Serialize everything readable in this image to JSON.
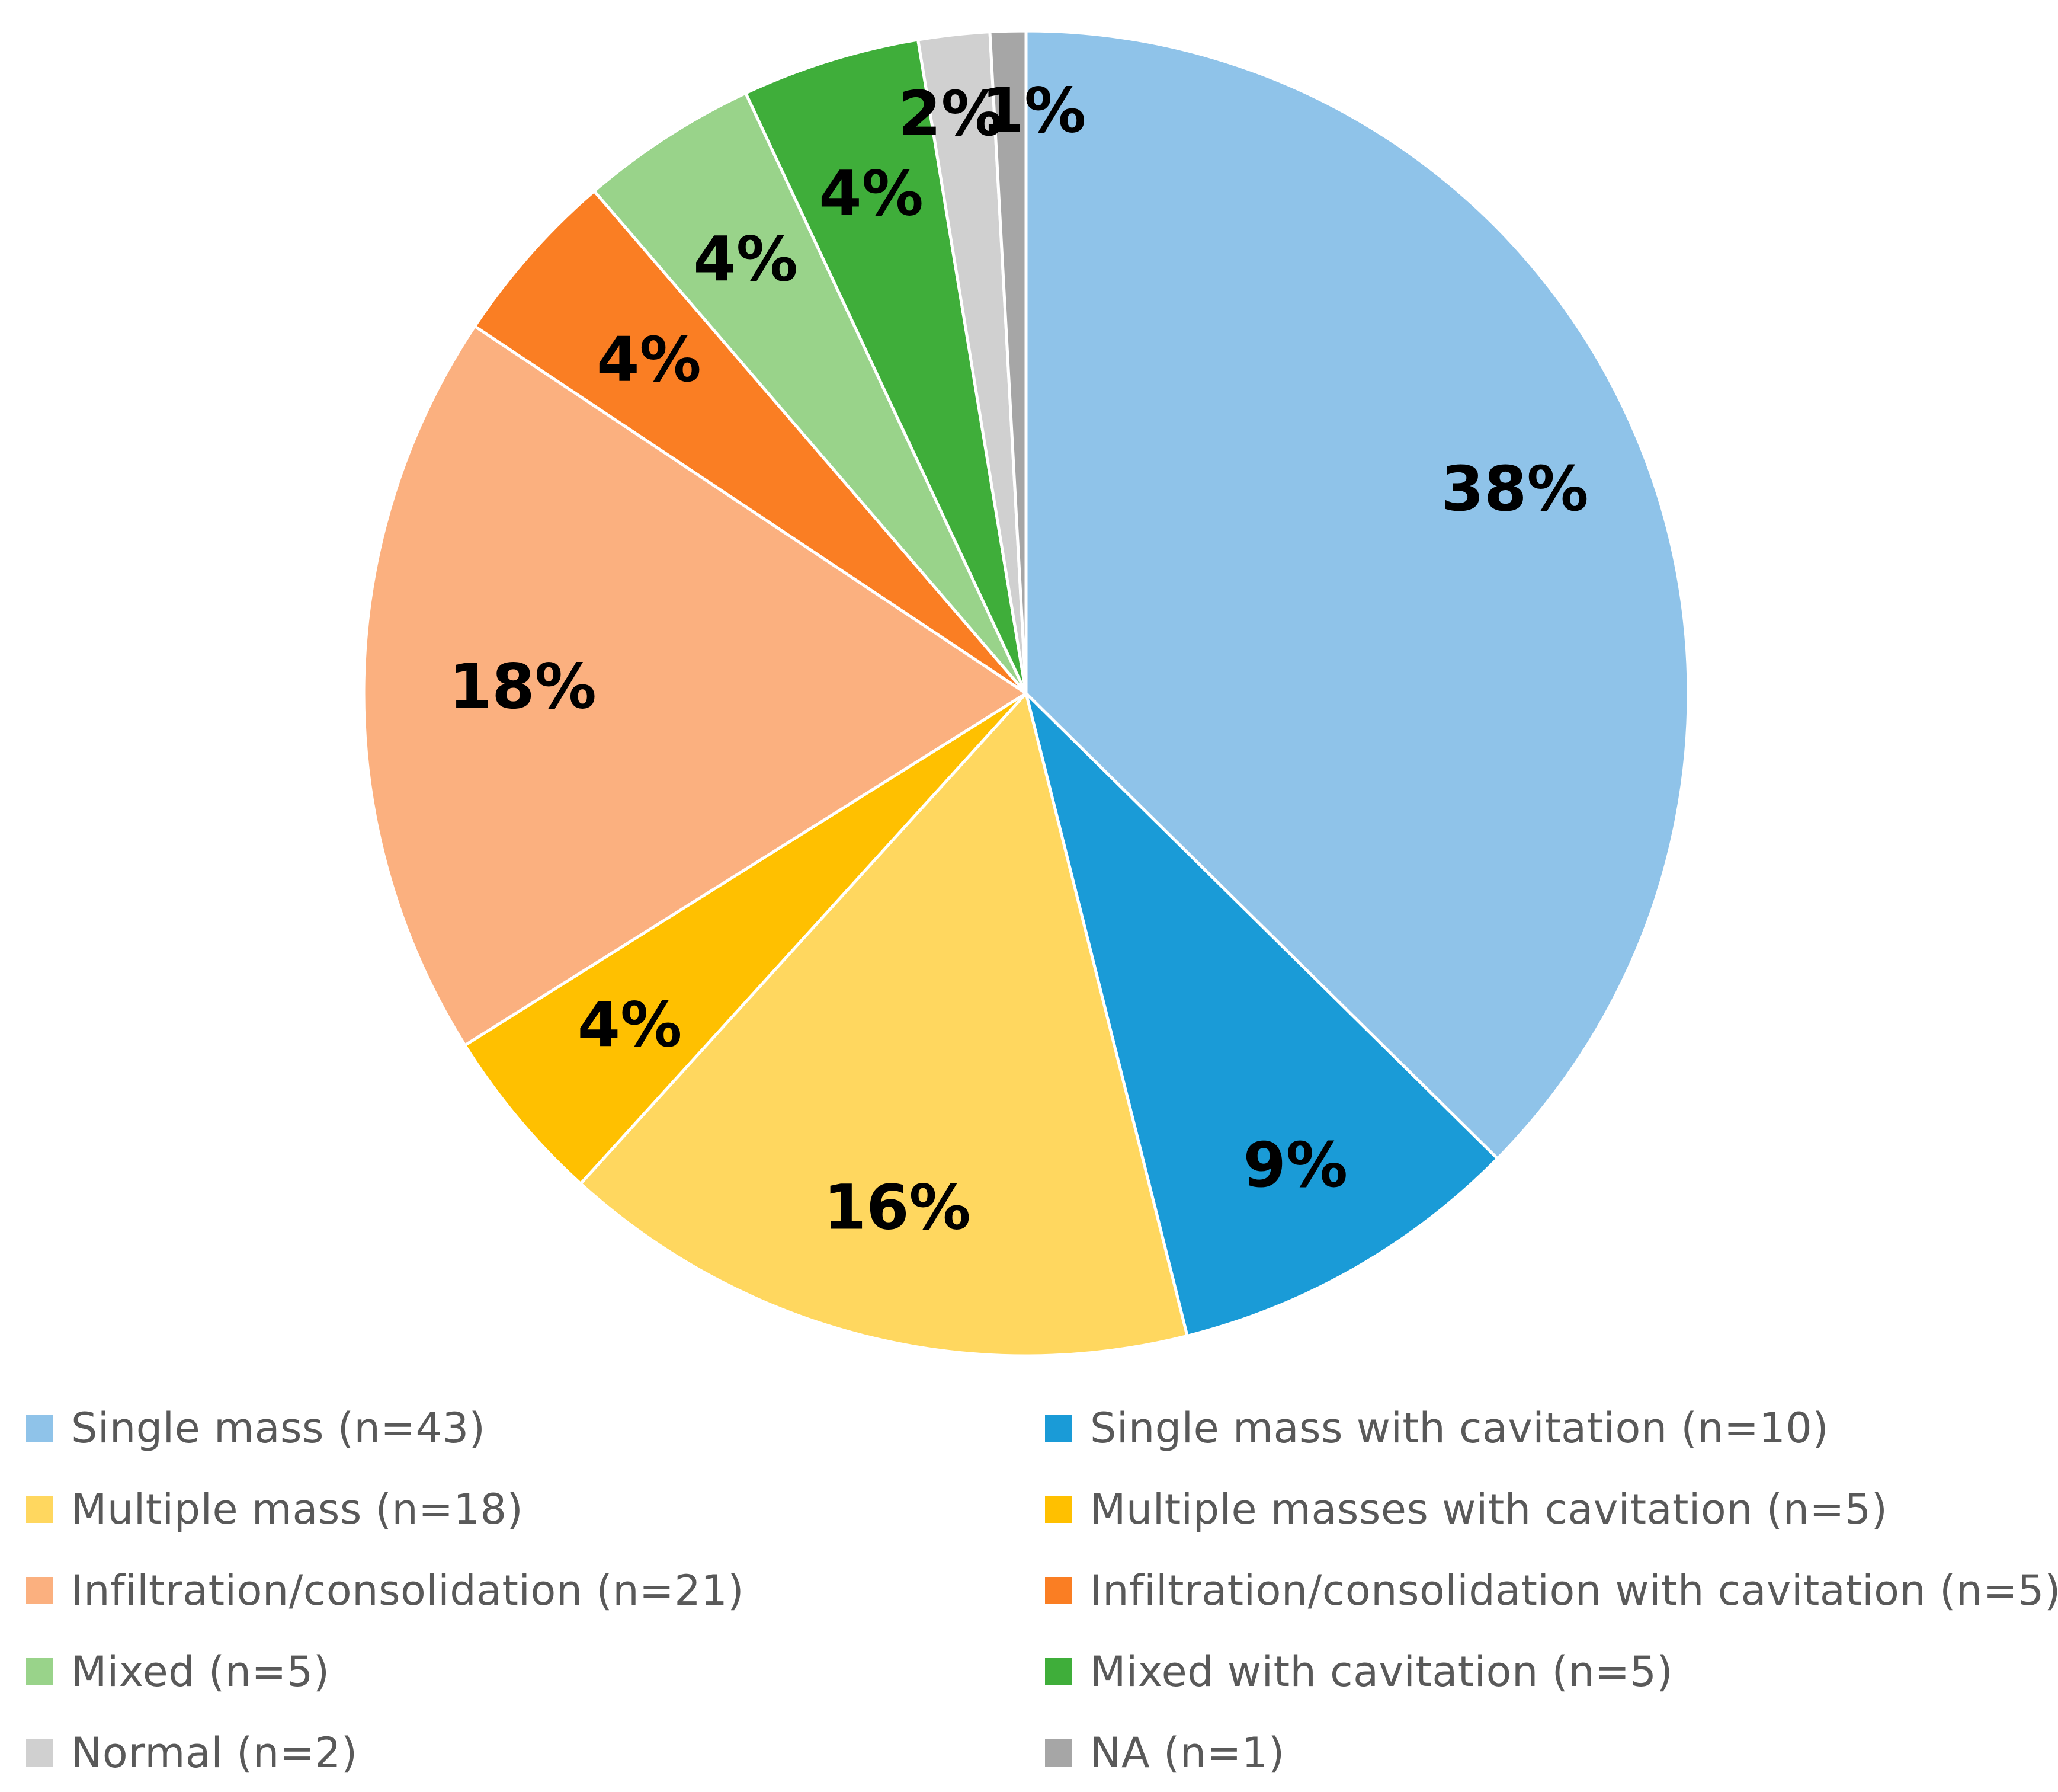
{
  "chart_data": {
    "type": "pie",
    "title": "",
    "start_angle_deg": 0,
    "direction": "clockwise",
    "slices": [
      {
        "name": "Single mass (n=43)",
        "value": 43,
        "label": "38%",
        "color": "#8FC3E9"
      },
      {
        "name": "Single mass with cavitation (n=10)",
        "value": 10,
        "label": "9%",
        "color": "#1A9BD7"
      },
      {
        "name": "Multiple mass (n=18)",
        "value": 18,
        "label": "16%",
        "color": "#FFD75F"
      },
      {
        "name": "Multiple masses with cavitation (n=5)",
        "value": 5,
        "label": "4%",
        "color": "#FFC000"
      },
      {
        "name": "Infiltration/consolidation (n=21)",
        "value": 21,
        "label": "18%",
        "color": "#FBB07F"
      },
      {
        "name": "Infiltration/consolidation with cavitation (n=5)",
        "value": 5,
        "label": "4%",
        "color": "#FA7E23"
      },
      {
        "name": "Mixed (n=5)",
        "value": 5,
        "label": "4%",
        "color": "#99D38A"
      },
      {
        "name": "Mixed with cavitation (n=5)",
        "value": 5,
        "label": "4%",
        "color": "#3FAE3A"
      },
      {
        "name": "Normal (n=2)",
        "value": 2,
        "label": "2%",
        "color": "#D0D0D0"
      },
      {
        "name": "NA (n=1)",
        "value": 1,
        "label": "1%",
        "color": "#A6A6A6"
      }
    ],
    "legend": {
      "placement": "bottom",
      "columns": 2,
      "order": [
        0,
        1,
        2,
        3,
        4,
        5,
        6,
        7,
        8,
        9
      ]
    }
  }
}
